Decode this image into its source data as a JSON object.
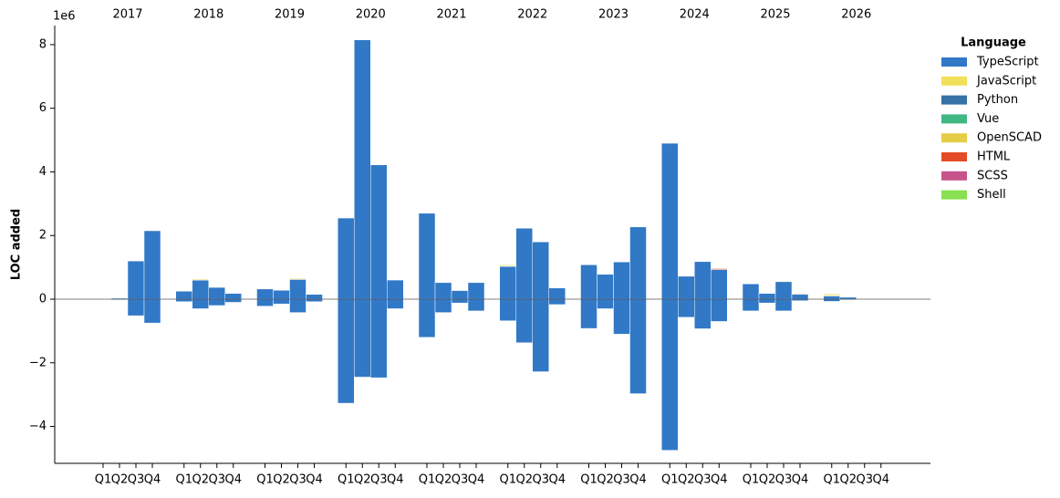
{
  "chart_data": {
    "type": "bar",
    "stacked": true,
    "y_label": "LOC added",
    "scale_label": "1e6",
    "legend_title": "Language",
    "legend_position": "upper right",
    "years": [
      "2017",
      "2018",
      "2019",
      "2020",
      "2021",
      "2022",
      "2023",
      "2024",
      "2025",
      "2026"
    ],
    "quarters": [
      "Q1",
      "Q2",
      "Q3",
      "Q4"
    ],
    "ylim": [
      -5.16,
      8.6
    ],
    "yticks": [
      {
        "value": -4,
        "label": "−4"
      },
      {
        "value": -2,
        "label": "−2"
      },
      0,
      2,
      4,
      6,
      8
    ],
    "series": [
      {
        "name": "TypeScript",
        "color": "#3178c6",
        "values": [
          0,
          0.03,
          1.2,
          2.15,
          0.25,
          0.6,
          0.37,
          0.18,
          0.32,
          0.28,
          0.62,
          0.15,
          2.55,
          8.15,
          4.22,
          0.6,
          2.7,
          0.52,
          0.27,
          0.52,
          1.03,
          2.23,
          1.8,
          0.35,
          1.08,
          0.78,
          1.17,
          2.27,
          4.9,
          0.72,
          1.18,
          0.93,
          0.48,
          0.18,
          0.55,
          0.15,
          0.1,
          0.06,
          0,
          0
        ],
        "negative_values": [
          0,
          -0.02,
          -0.52,
          -0.75,
          -0.08,
          -0.3,
          -0.2,
          -0.1,
          -0.22,
          -0.15,
          -0.42,
          -0.08,
          -3.27,
          -2.45,
          -2.47,
          -0.3,
          -1.2,
          -0.42,
          -0.12,
          -0.37,
          -0.68,
          -1.37,
          -2.28,
          -0.17,
          -0.92,
          -0.3,
          -1.1,
          -2.97,
          -4.75,
          -0.57,
          -0.93,
          -0.7,
          -0.37,
          -0.12,
          -0.37,
          -0.05,
          -0.07,
          -0.02,
          0,
          0
        ]
      },
      {
        "name": "JavaScript",
        "color": "#f1e05a",
        "values": [
          0,
          0,
          0,
          0,
          0,
          0.03,
          0,
          0,
          0,
          0,
          0.03,
          0,
          0,
          0,
          0,
          0,
          0,
          0,
          0,
          0,
          0.03,
          0,
          0,
          0,
          0,
          0,
          0,
          0,
          0,
          0,
          0,
          0,
          0,
          0,
          0.02,
          0,
          0.04,
          0,
          0,
          0
        ]
      },
      {
        "name": "Python",
        "color": "#3572a5",
        "values": [
          0,
          0,
          0,
          0,
          0,
          0,
          0,
          0,
          0,
          0,
          0,
          0,
          0,
          0,
          0,
          0,
          0,
          0,
          0,
          0,
          0,
          0,
          0,
          0,
          0,
          0,
          0,
          0,
          0,
          0,
          0,
          0,
          0,
          0,
          0,
          0,
          0,
          0,
          0,
          0
        ]
      },
      {
        "name": "Vue",
        "color": "#41b883",
        "values": [
          0,
          0,
          0,
          0,
          0,
          0,
          0,
          0,
          0,
          0,
          0,
          0,
          0,
          0,
          0,
          0,
          0,
          0,
          0,
          0,
          0,
          0,
          0,
          0,
          0,
          0,
          0,
          0,
          0,
          0,
          0,
          0,
          0,
          0,
          0,
          0,
          0,
          0,
          0,
          0
        ]
      },
      {
        "name": "OpenSCAD",
        "color": "#e5cd45",
        "values": [
          0,
          0,
          0,
          0,
          0,
          0,
          0,
          0,
          0,
          0,
          0,
          0,
          0,
          0,
          0,
          0,
          0,
          0,
          0,
          0,
          0,
          0,
          0,
          0,
          0,
          0,
          0,
          0,
          0,
          0,
          0,
          0,
          0,
          0,
          0,
          0,
          0.02,
          0,
          0,
          0
        ]
      },
      {
        "name": "HTML",
        "color": "#e34c26",
        "values": [
          0,
          0,
          0,
          0,
          0,
          0,
          0,
          0,
          0,
          0,
          0,
          0,
          0,
          0,
          0,
          0,
          0,
          0,
          0,
          0,
          0,
          0,
          0,
          0,
          0,
          0,
          0,
          0,
          0,
          0,
          0,
          0.03,
          0,
          0,
          0,
          0.02,
          0,
          0,
          0,
          0
        ]
      },
      {
        "name": "SCSS",
        "color": "#c6538c",
        "values": [
          0,
          0,
          0,
          0,
          0,
          0,
          0,
          0,
          0,
          0,
          0,
          0,
          0,
          0,
          0,
          0,
          0,
          0,
          0,
          0,
          0,
          0,
          0,
          0,
          0,
          0,
          0,
          0,
          0,
          0,
          0,
          0,
          0,
          0,
          0,
          0,
          0,
          0,
          0,
          0
        ]
      },
      {
        "name": "Shell",
        "color": "#89e051",
        "values": [
          0,
          0,
          0,
          0,
          0,
          0,
          0,
          0,
          0,
          0,
          0,
          0,
          0,
          0,
          0,
          0,
          0,
          0,
          0,
          0,
          0.02,
          0,
          0,
          0,
          0,
          0,
          0,
          0,
          0,
          0,
          0,
          0,
          0,
          0,
          0,
          0,
          0.02,
          0,
          0,
          0
        ]
      }
    ]
  }
}
